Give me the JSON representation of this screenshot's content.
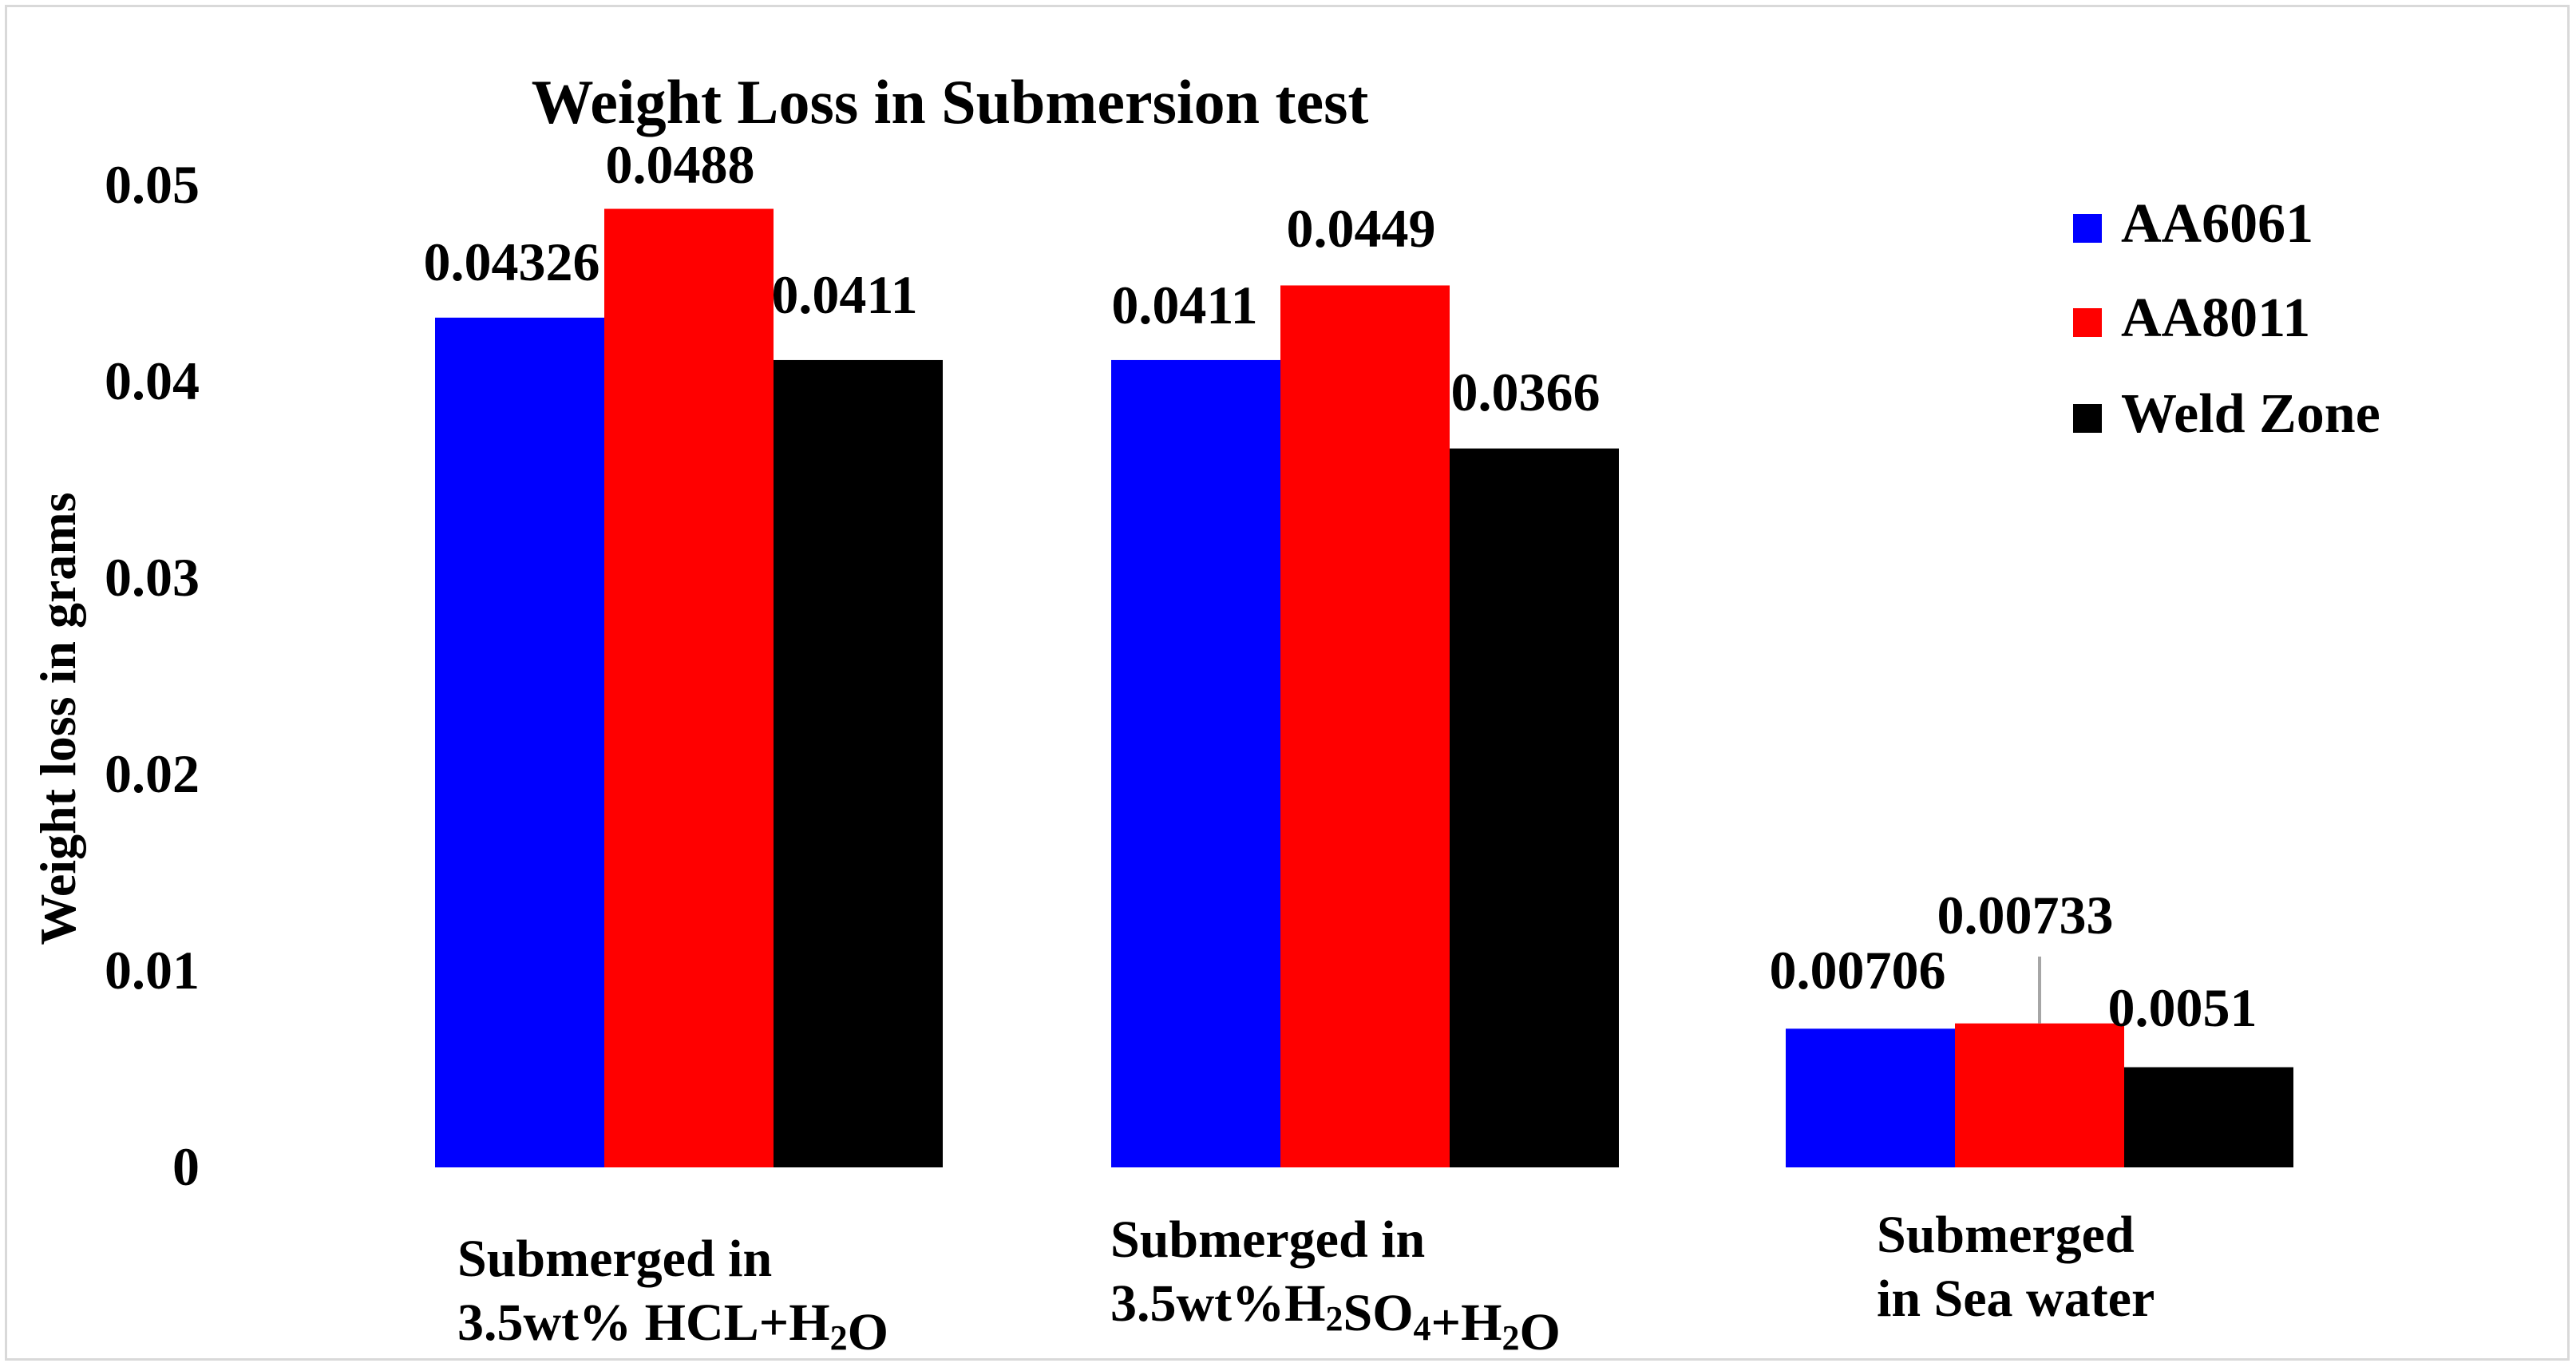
{
  "chart_data": {
    "type": "bar",
    "title": "Weight Loss in Submersion test",
    "xlabel": "",
    "ylabel": "Weight loss in grams",
    "ylim": [
      0,
      0.05
    ],
    "yticks": [
      "0",
      "0.01",
      "0.02",
      "0.03",
      "0.04",
      "0.05"
    ],
    "ytick_values": [
      0,
      0.01,
      0.02,
      0.03,
      0.04,
      0.05
    ],
    "grid": false,
    "legend_position": "top-right",
    "categories": [
      "Submerged in 3.5wt% HCL+H2O",
      "Submerged in 3.5wt%H2SO4+H2O",
      "Submerged in Sea water"
    ],
    "category_lines": [
      [
        {
          "t": "Submerged in"
        }
      ],
      [
        {
          "t": "3.5wt% HCL+H"
        },
        {
          "t": "2",
          "sub": true
        },
        {
          "t": "O"
        }
      ],
      [
        {
          "t": "Submerged in"
        }
      ],
      [
        {
          "t": "3.5wt%H"
        },
        {
          "t": "2",
          "sub": true
        },
        {
          "t": "SO"
        },
        {
          "t": "4",
          "sub": true
        },
        {
          "t": "+H"
        },
        {
          "t": "2",
          "sub": true
        },
        {
          "t": "O"
        }
      ],
      [
        {
          "t": "Submerged"
        }
      ],
      [
        {
          "t": "in Sea water"
        }
      ]
    ],
    "series": [
      {
        "name": "AA6061",
        "color": "#0000ff",
        "values": [
          0.04326,
          0.0411,
          0.00706
        ],
        "labels": [
          "0.04326",
          "0.0411",
          "0.00706"
        ]
      },
      {
        "name": "AA8011",
        "color": "#ff0000",
        "values": [
          0.0488,
          0.0449,
          0.00733
        ],
        "labels": [
          "0.0488",
          "0.0449",
          "0.00733"
        ]
      },
      {
        "name": "Weld Zone",
        "color": "#000000",
        "values": [
          0.0411,
          0.0366,
          0.0051
        ],
        "labels": [
          "0.0411",
          "0.0366",
          "0.0051"
        ]
      }
    ]
  }
}
